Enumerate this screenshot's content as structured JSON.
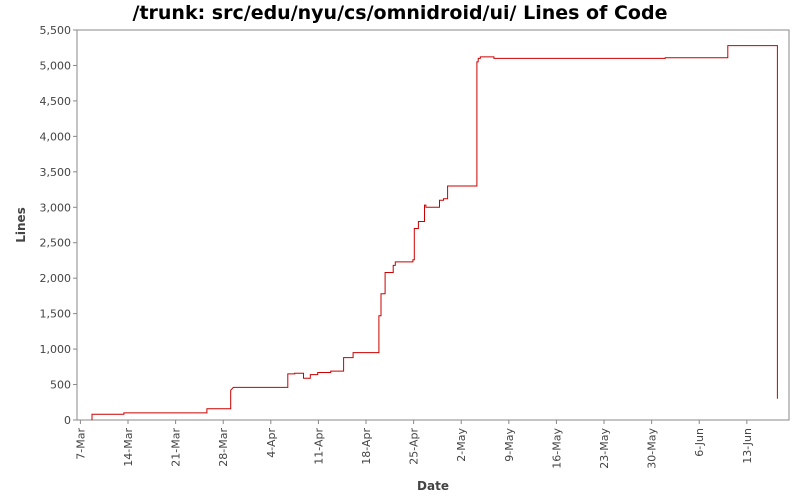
{
  "chart_data": {
    "type": "line",
    "title": "/trunk: src/edu/nyu/cs/omnidroid/ui/ Lines of Code",
    "xlabel": "Date",
    "ylabel": "Lines",
    "ylim": [
      0,
      5500
    ],
    "y_ticks": [
      0,
      500,
      1000,
      1500,
      2000,
      2500,
      3000,
      3500,
      4000,
      4500,
      5000,
      5500
    ],
    "y_tick_labels": [
      "0",
      "500",
      "1,000",
      "1,500",
      "2,000",
      "2,500",
      "3,000",
      "3,500",
      "4,000",
      "4,500",
      "5,000",
      "5,500"
    ],
    "x_tick_labels": [
      "7-Mar",
      "14-Mar",
      "21-Mar",
      "28-Mar",
      "4-Apr",
      "11-Apr",
      "18-Apr",
      "25-Apr",
      "2-May",
      "9-May",
      "16-May",
      "23-May",
      "30-May",
      "6-Jun",
      "13-Jun"
    ],
    "x_tick_days": [
      0,
      7,
      14,
      21,
      28,
      35,
      42,
      49,
      56,
      63,
      70,
      77,
      84,
      91,
      98
    ],
    "x_range_days": [
      -0.5,
      104.2
    ],
    "grid": false,
    "line_color": "#cc0000",
    "series": [
      {
        "step": true,
        "points": [
          [
            1.7,
            0
          ],
          [
            1.7,
            80
          ],
          [
            6.4,
            80
          ],
          [
            6.4,
            100
          ],
          [
            18.6,
            100
          ],
          [
            18.6,
            160
          ],
          [
            22.1,
            160
          ],
          [
            22.1,
            420
          ],
          [
            22.5,
            460
          ],
          [
            30.5,
            460
          ],
          [
            30.5,
            650
          ],
          [
            31.5,
            650
          ],
          [
            31.5,
            660
          ],
          [
            32.8,
            660
          ],
          [
            32.8,
            590
          ],
          [
            33.8,
            590
          ],
          [
            33.8,
            640
          ],
          [
            34.9,
            640
          ],
          [
            34.9,
            670
          ],
          [
            36.8,
            670
          ],
          [
            36.8,
            690
          ],
          [
            38.7,
            690
          ],
          [
            38.7,
            880
          ],
          [
            40.1,
            880
          ],
          [
            40.1,
            950
          ],
          [
            43.9,
            950
          ],
          [
            43.9,
            1470
          ],
          [
            44.2,
            1470
          ],
          [
            44.2,
            1780
          ],
          [
            44.8,
            1780
          ],
          [
            44.8,
            2080
          ],
          [
            46.0,
            2080
          ],
          [
            46.0,
            2180
          ],
          [
            46.3,
            2180
          ],
          [
            46.3,
            2230
          ],
          [
            48.9,
            2230
          ],
          [
            48.9,
            2260
          ],
          [
            49.1,
            2260
          ],
          [
            49.1,
            2700
          ],
          [
            49.7,
            2700
          ],
          [
            49.7,
            2800
          ],
          [
            50.6,
            2800
          ],
          [
            50.6,
            3030
          ],
          [
            50.8,
            3030
          ],
          [
            50.8,
            3000
          ],
          [
            52.8,
            3000
          ],
          [
            52.8,
            3100
          ],
          [
            53.4,
            3100
          ],
          [
            53.4,
            3120
          ],
          [
            54.0,
            3120
          ],
          [
            54.0,
            3300
          ],
          [
            58.3,
            3300
          ],
          [
            58.3,
            5050
          ],
          [
            58.5,
            5050
          ],
          [
            58.5,
            5100
          ],
          [
            58.8,
            5100
          ],
          [
            58.8,
            5120
          ],
          [
            60.8,
            5120
          ],
          [
            60.8,
            5100
          ],
          [
            86.0,
            5100
          ],
          [
            86.0,
            5110
          ],
          [
            95.2,
            5110
          ],
          [
            95.2,
            5280
          ],
          [
            102.5,
            5280
          ],
          [
            102.5,
            300
          ]
        ]
      }
    ]
  }
}
